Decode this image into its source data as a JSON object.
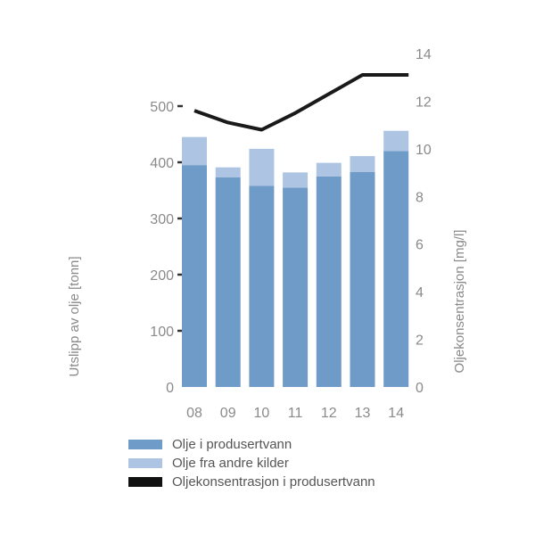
{
  "chart_data": {
    "type": "bar",
    "stacked": true,
    "categories": [
      "08",
      "09",
      "10",
      "11",
      "12",
      "13",
      "14"
    ],
    "series": [
      {
        "name": "Olje i produsertvann",
        "type": "bar",
        "axis": "left",
        "values": [
          395,
          373,
          358,
          355,
          375,
          383,
          420
        ],
        "color": "#6f9bc8"
      },
      {
        "name": "Olje fra andre kilder",
        "type": "bar",
        "axis": "left",
        "values": [
          50,
          18,
          66,
          27,
          24,
          28,
          36
        ],
        "color": "#adc5e3"
      },
      {
        "name": "Oljekonsentrasjon i produsertvann",
        "type": "line",
        "axis": "right",
        "values": [
          11.6,
          11.1,
          10.8,
          11.5,
          12.3,
          13.1,
          13.1
        ],
        "color": "#1a1a1a"
      }
    ],
    "y_left": {
      "label": "Utslipp av olje [tonn]",
      "ticks": [
        0,
        100,
        200,
        300,
        400,
        500
      ],
      "range": [
        0,
        550
      ]
    },
    "y_right": {
      "label": "Oljekonsentrasjon [mg/l]",
      "ticks": [
        0,
        2,
        4,
        6,
        8,
        10,
        12,
        14
      ],
      "range": [
        0,
        14
      ]
    },
    "grid": false,
    "legend_position": "bottom-left"
  }
}
